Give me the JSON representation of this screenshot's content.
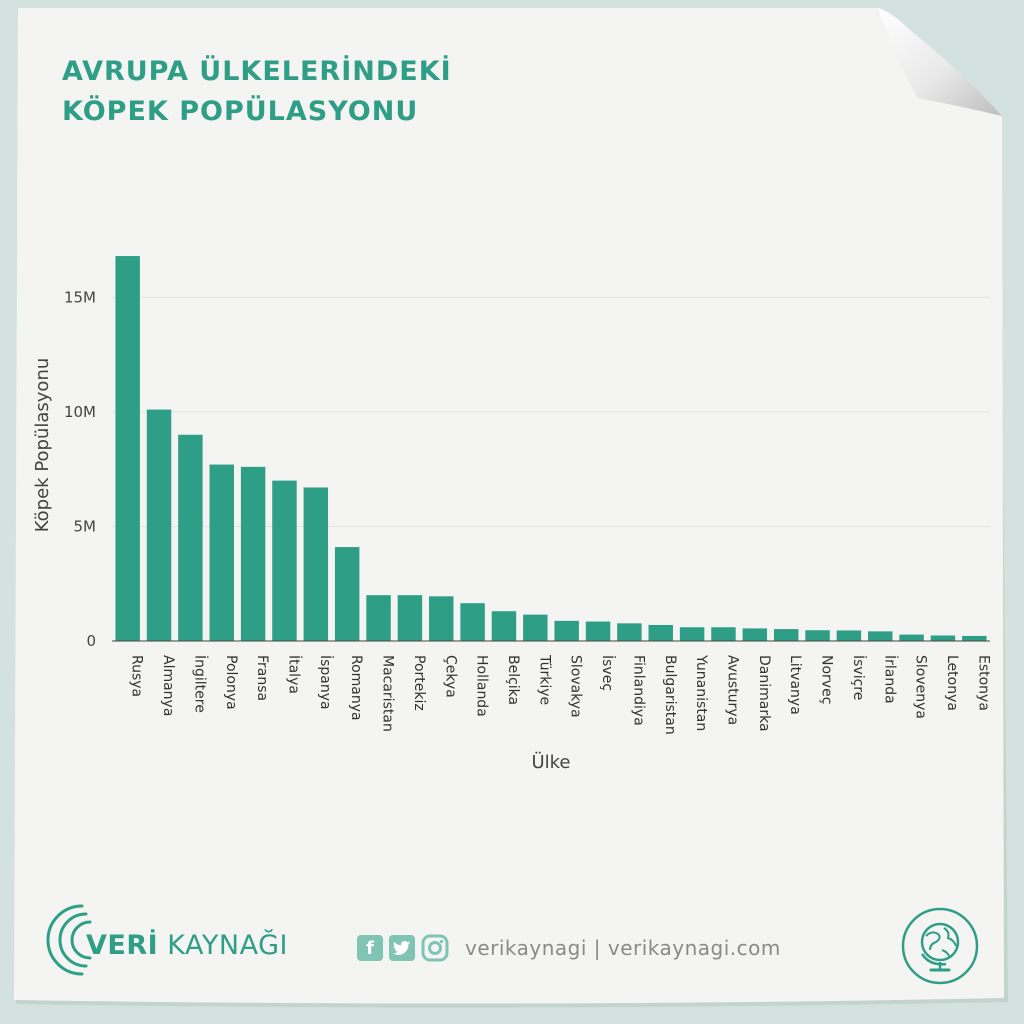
{
  "title_lines": [
    "AVRUPA ÜLKELERİNDEKİ",
    "KÖPEK POPÜLASYONU"
  ],
  "chart_data": {
    "type": "bar",
    "title": "AVRUPA ÜLKELERİNDEKİ KÖPEK POPÜLASYONU",
    "xlabel": "Ülke",
    "ylabel": "Köpek Popülasyonu",
    "ylim": [
      0,
      17500000
    ],
    "yticks": [
      0,
      5000000,
      10000000,
      15000000
    ],
    "ytick_labels": [
      "0",
      "5M",
      "10M",
      "15M"
    ],
    "grid": true,
    "legend": "none",
    "bar_color": "#2e9e86",
    "categories": [
      "Rusya",
      "Almanya",
      "İngiltere",
      "Polonya",
      "Fransa",
      "İtalya",
      "İspanya",
      "Romanya",
      "Macaristan",
      "Portekiz",
      "Çekya",
      "Hollanda",
      "Belçika",
      "Türkiye",
      "Slovakya",
      "İsveç",
      "Finlandiya",
      "Bulgaristan",
      "Yunanistan",
      "Avusturya",
      "Danimarka",
      "Litvanya",
      "Norveç",
      "İsviçre",
      "İrlanda",
      "Slovenya",
      "Letonya",
      "Estonya"
    ],
    "values": [
      16800000,
      10100000,
      9000000,
      7700000,
      7600000,
      7000000,
      6700000,
      4100000,
      2000000,
      2000000,
      1950000,
      1650000,
      1300000,
      1150000,
      880000,
      850000,
      770000,
      700000,
      600000,
      600000,
      550000,
      520000,
      470000,
      460000,
      420000,
      280000,
      240000,
      220000
    ]
  },
  "footer": {
    "brand_part1": "VERİ",
    "brand_part2": "KAYNAĞI",
    "facebook_icon": "f",
    "social_text": "verikaynagi | verikaynagi.com"
  },
  "colors": {
    "accent": "#2e9e86",
    "paper": "#f4f4f3",
    "background": "#d3e2df"
  }
}
